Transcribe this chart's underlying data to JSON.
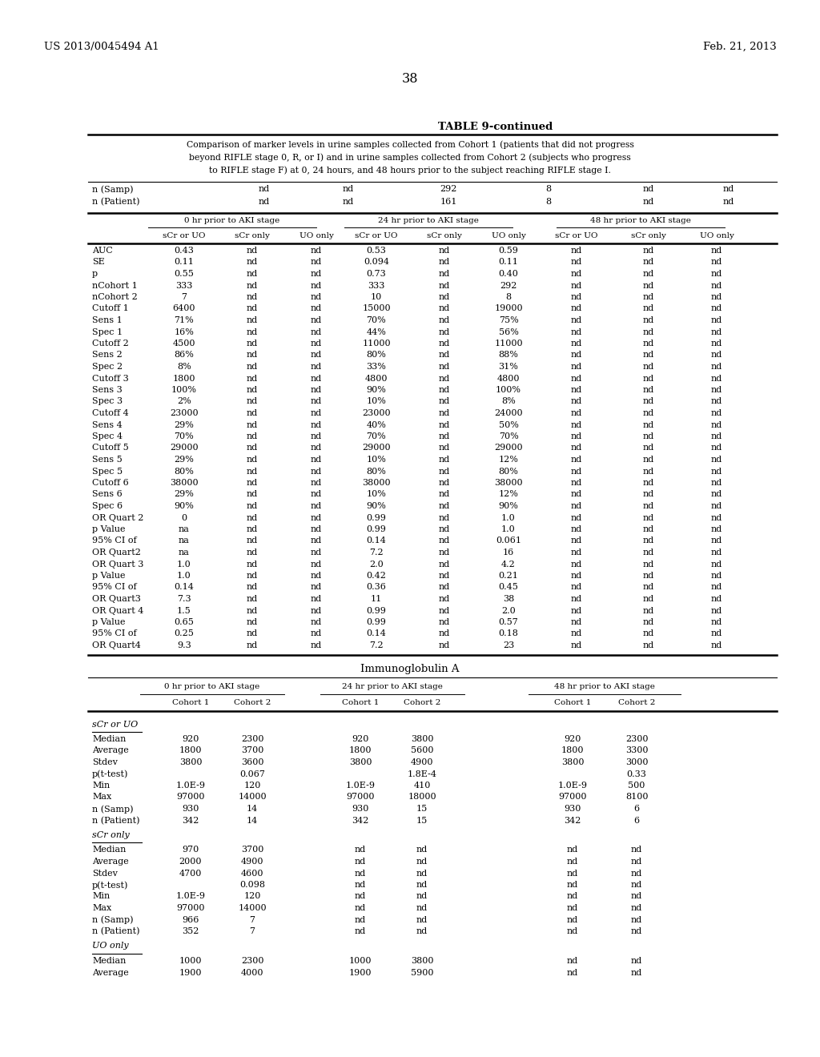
{
  "page_header_left": "US 2013/0045494 A1",
  "page_header_right": "Feb. 21, 2013",
  "page_number": "38",
  "table_title": "TABLE 9-continued",
  "table_caption_lines": [
    "Comparison of marker levels in urine samples collected from Cohort 1 (patients that did not progress",
    "beyond RIFLE stage 0, R, or I) and in urine samples collected from Cohort 2 (subjects who progress",
    "to RIFLE stage F) at 0, 24 hours, and 48 hours prior to the subject reaching RIFLE stage I."
  ],
  "n_rows": [
    [
      "n (Samp)",
      "nd",
      "nd",
      "292",
      "8",
      "nd",
      "nd"
    ],
    [
      "n (Patient)",
      "nd",
      "nd",
      "161",
      "8",
      "nd",
      "nd"
    ]
  ],
  "group_headers_top": [
    "0 hr prior to AKI stage",
    "24 hr prior to AKI stage",
    "48 hr prior to AKI stage"
  ],
  "sub_headers_top": [
    "sCr or UO",
    "sCr only",
    "UO only",
    "sCr or UO",
    "sCr only",
    "UO only",
    "sCr or UO",
    "sCr only",
    "UO only"
  ],
  "data_rows": [
    [
      "AUC",
      "0.43",
      "nd",
      "nd",
      "0.53",
      "nd",
      "0.59",
      "nd",
      "nd",
      "nd"
    ],
    [
      "SE",
      "0.11",
      "nd",
      "nd",
      "0.094",
      "nd",
      "0.11",
      "nd",
      "nd",
      "nd"
    ],
    [
      "p",
      "0.55",
      "nd",
      "nd",
      "0.73",
      "nd",
      "0.40",
      "nd",
      "nd",
      "nd"
    ],
    [
      "nCohort 1",
      "333",
      "nd",
      "nd",
      "333",
      "nd",
      "292",
      "nd",
      "nd",
      "nd"
    ],
    [
      "nCohort 2",
      "7",
      "nd",
      "nd",
      "10",
      "nd",
      "8",
      "nd",
      "nd",
      "nd"
    ],
    [
      "Cutoff 1",
      "6400",
      "nd",
      "nd",
      "15000",
      "nd",
      "19000",
      "nd",
      "nd",
      "nd"
    ],
    [
      "Sens 1",
      "71%",
      "nd",
      "nd",
      "70%",
      "nd",
      "75%",
      "nd",
      "nd",
      "nd"
    ],
    [
      "Spec 1",
      "16%",
      "nd",
      "nd",
      "44%",
      "nd",
      "56%",
      "nd",
      "nd",
      "nd"
    ],
    [
      "Cutoff 2",
      "4500",
      "nd",
      "nd",
      "11000",
      "nd",
      "11000",
      "nd",
      "nd",
      "nd"
    ],
    [
      "Sens 2",
      "86%",
      "nd",
      "nd",
      "80%",
      "nd",
      "88%",
      "nd",
      "nd",
      "nd"
    ],
    [
      "Spec 2",
      "8%",
      "nd",
      "nd",
      "33%",
      "nd",
      "31%",
      "nd",
      "nd",
      "nd"
    ],
    [
      "Cutoff 3",
      "1800",
      "nd",
      "nd",
      "4800",
      "nd",
      "4800",
      "nd",
      "nd",
      "nd"
    ],
    [
      "Sens 3",
      "100%",
      "nd",
      "nd",
      "90%",
      "nd",
      "100%",
      "nd",
      "nd",
      "nd"
    ],
    [
      "Spec 3",
      "2%",
      "nd",
      "nd",
      "10%",
      "nd",
      "8%",
      "nd",
      "nd",
      "nd"
    ],
    [
      "Cutoff 4",
      "23000",
      "nd",
      "nd",
      "23000",
      "nd",
      "24000",
      "nd",
      "nd",
      "nd"
    ],
    [
      "Sens 4",
      "29%",
      "nd",
      "nd",
      "40%",
      "nd",
      "50%",
      "nd",
      "nd",
      "nd"
    ],
    [
      "Spec 4",
      "70%",
      "nd",
      "nd",
      "70%",
      "nd",
      "70%",
      "nd",
      "nd",
      "nd"
    ],
    [
      "Cutoff 5",
      "29000",
      "nd",
      "nd",
      "29000",
      "nd",
      "29000",
      "nd",
      "nd",
      "nd"
    ],
    [
      "Sens 5",
      "29%",
      "nd",
      "nd",
      "10%",
      "nd",
      "12%",
      "nd",
      "nd",
      "nd"
    ],
    [
      "Spec 5",
      "80%",
      "nd",
      "nd",
      "80%",
      "nd",
      "80%",
      "nd",
      "nd",
      "nd"
    ],
    [
      "Cutoff 6",
      "38000",
      "nd",
      "nd",
      "38000",
      "nd",
      "38000",
      "nd",
      "nd",
      "nd"
    ],
    [
      "Sens 6",
      "29%",
      "nd",
      "nd",
      "10%",
      "nd",
      "12%",
      "nd",
      "nd",
      "nd"
    ],
    [
      "Spec 6",
      "90%",
      "nd",
      "nd",
      "90%",
      "nd",
      "90%",
      "nd",
      "nd",
      "nd"
    ],
    [
      "OR Quart 2",
      "0",
      "nd",
      "nd",
      "0.99",
      "nd",
      "1.0",
      "nd",
      "nd",
      "nd"
    ],
    [
      "p Value",
      "na",
      "nd",
      "nd",
      "0.99",
      "nd",
      "1.0",
      "nd",
      "nd",
      "nd"
    ],
    [
      "95% CI of",
      "na",
      "nd",
      "nd",
      "0.14",
      "nd",
      "0.061",
      "nd",
      "nd",
      "nd"
    ],
    [
      "OR Quart2",
      "na",
      "nd",
      "nd",
      "7.2",
      "nd",
      "16",
      "nd",
      "nd",
      "nd"
    ],
    [
      "OR Quart 3",
      "1.0",
      "nd",
      "nd",
      "2.0",
      "nd",
      "4.2",
      "nd",
      "nd",
      "nd"
    ],
    [
      "p Value",
      "1.0",
      "nd",
      "nd",
      "0.42",
      "nd",
      "0.21",
      "nd",
      "nd",
      "nd"
    ],
    [
      "95% CI of",
      "0.14",
      "nd",
      "nd",
      "0.36",
      "nd",
      "0.45",
      "nd",
      "nd",
      "nd"
    ],
    [
      "OR Quart3",
      "7.3",
      "nd",
      "nd",
      "11",
      "nd",
      "38",
      "nd",
      "nd",
      "nd"
    ],
    [
      "OR Quart 4",
      "1.5",
      "nd",
      "nd",
      "0.99",
      "nd",
      "2.0",
      "nd",
      "nd",
      "nd"
    ],
    [
      "p Value",
      "0.65",
      "nd",
      "nd",
      "0.99",
      "nd",
      "0.57",
      "nd",
      "nd",
      "nd"
    ],
    [
      "95% CI of",
      "0.25",
      "nd",
      "nd",
      "0.14",
      "nd",
      "0.18",
      "nd",
      "nd",
      "nd"
    ],
    [
      "OR Quart4",
      "9.3",
      "nd",
      "nd",
      "7.2",
      "nd",
      "23",
      "nd",
      "nd",
      "nd"
    ]
  ],
  "ig_title": "Immunoglobulin A",
  "ig_group_headers": [
    "0 hr prior to AKI stage",
    "24 hr prior to AKI stage",
    "48 hr prior to AKI stage"
  ],
  "ig_col_headers": [
    "Cohort 1",
    "Cohort 2",
    "Cohort 1",
    "Cohort 2",
    "Cohort 1",
    "Cohort 2"
  ],
  "ig_subsections": [
    {
      "name": "sCr or UO",
      "rows": [
        [
          "Median",
          "920",
          "2300",
          "920",
          "3800",
          "920",
          "2300"
        ],
        [
          "Average",
          "1800",
          "3700",
          "1800",
          "5600",
          "1800",
          "3300"
        ],
        [
          "Stdev",
          "3800",
          "3600",
          "3800",
          "4900",
          "3800",
          "3000"
        ],
        [
          "p(t-test)",
          "",
          "0.067",
          "",
          "1.8E-4",
          "",
          "0.33"
        ],
        [
          "Min",
          "1.0E-9",
          "120",
          "1.0E-9",
          "410",
          "1.0E-9",
          "500"
        ],
        [
          "Max",
          "97000",
          "14000",
          "97000",
          "18000",
          "97000",
          "8100"
        ],
        [
          "n (Samp)",
          "930",
          "14",
          "930",
          "15",
          "930",
          "6"
        ],
        [
          "n (Patient)",
          "342",
          "14",
          "342",
          "15",
          "342",
          "6"
        ]
      ]
    },
    {
      "name": "sCr only",
      "rows": [
        [
          "Median",
          "970",
          "3700",
          "nd",
          "nd",
          "nd",
          "nd"
        ],
        [
          "Average",
          "2000",
          "4900",
          "nd",
          "nd",
          "nd",
          "nd"
        ],
        [
          "Stdev",
          "4700",
          "4600",
          "nd",
          "nd",
          "nd",
          "nd"
        ],
        [
          "p(t-test)",
          "",
          "0.098",
          "nd",
          "nd",
          "nd",
          "nd"
        ],
        [
          "Min",
          "1.0E-9",
          "120",
          "nd",
          "nd",
          "nd",
          "nd"
        ],
        [
          "Max",
          "97000",
          "14000",
          "nd",
          "nd",
          "nd",
          "nd"
        ],
        [
          "n (Samp)",
          "966",
          "7",
          "nd",
          "nd",
          "nd",
          "nd"
        ],
        [
          "n (Patient)",
          "352",
          "7",
          "nd",
          "nd",
          "nd",
          "nd"
        ]
      ]
    },
    {
      "name": "UO only",
      "rows": [
        [
          "Median",
          "1000",
          "2300",
          "1000",
          "3800",
          "nd",
          "nd"
        ],
        [
          "Average",
          "1900",
          "4000",
          "1900",
          "5900",
          "nd",
          "nd"
        ]
      ]
    }
  ]
}
